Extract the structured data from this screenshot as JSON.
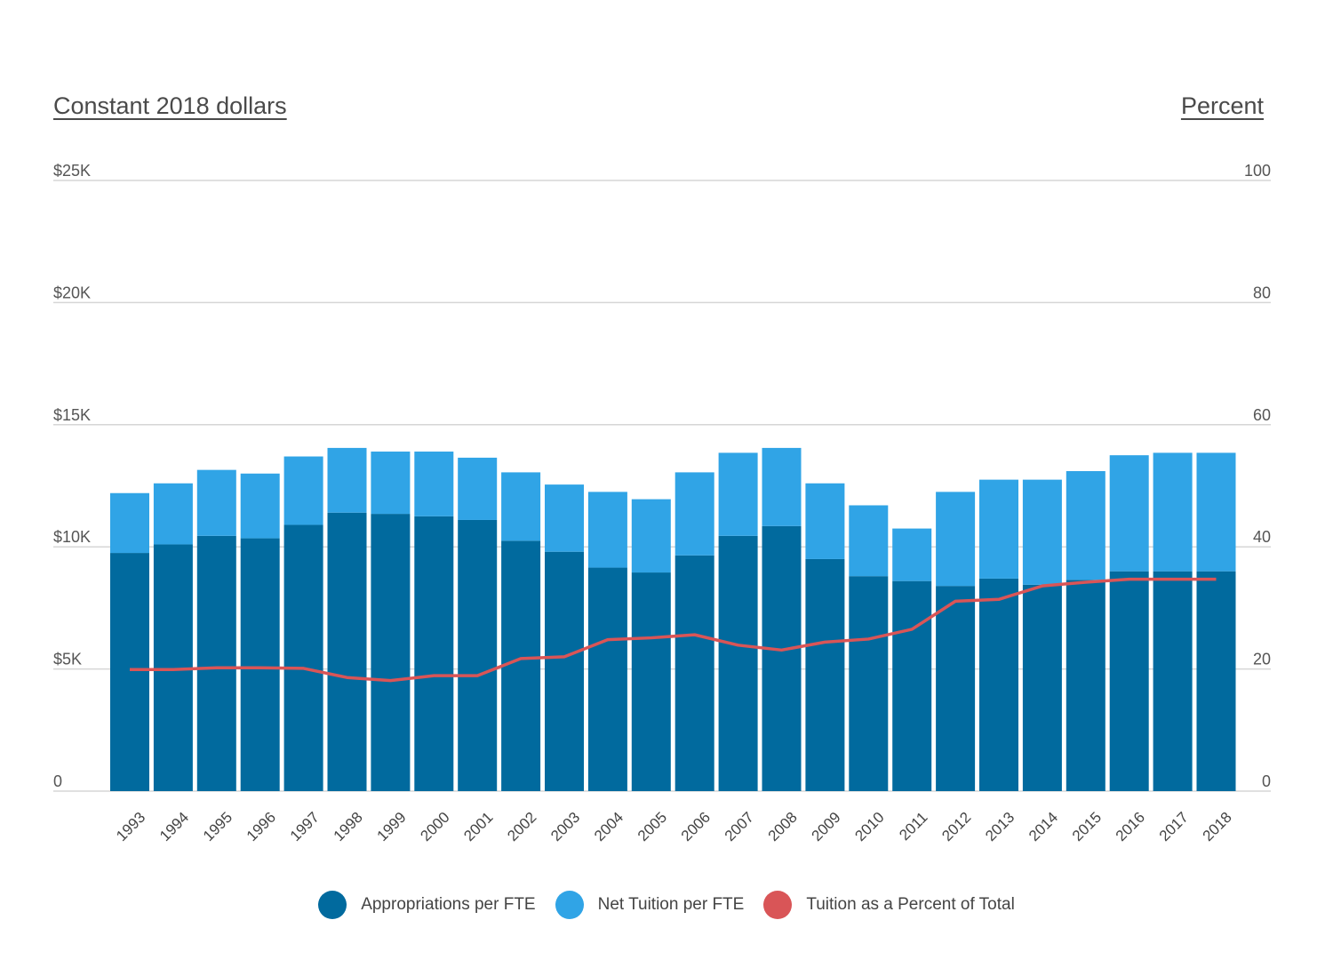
{
  "header": {
    "left_axis_title": "Constant 2018 dollars",
    "right_axis_title": "Percent"
  },
  "colors": {
    "appropriations": "#016a9e",
    "net_tuition": "#30a4e6",
    "percent_line": "#d95557",
    "grid": "#d6d6d6"
  },
  "legend": {
    "items": [
      {
        "label": "Appropriations per FTE",
        "color": "#016a9e"
      },
      {
        "label": "Net Tuition per FTE",
        "color": "#30a4e6"
      },
      {
        "label": "Tuition as a Percent of Total",
        "color": "#d95557"
      }
    ]
  },
  "chart_data": {
    "type": "bar",
    "stacked": true,
    "categories": [
      "1993",
      "1994",
      "1995",
      "1996",
      "1997",
      "1998",
      "1999",
      "2000",
      "2001",
      "2002",
      "2003",
      "2004",
      "2005",
      "2006",
      "2007",
      "2008",
      "2009",
      "2010",
      "2011",
      "2012",
      "2013",
      "2014",
      "2015",
      "2016",
      "2017",
      "2018"
    ],
    "series": [
      {
        "name": "Appropriations per FTE",
        "axis": "left",
        "values": [
          9750,
          10100,
          10450,
          10350,
          10900,
          11400,
          11350,
          11250,
          11100,
          10250,
          9800,
          9150,
          8950,
          9650,
          10450,
          10850,
          9500,
          8800,
          8600,
          8400,
          8700,
          8450,
          8650,
          9000,
          9000,
          9000
        ]
      },
      {
        "name": "Net Tuition per FTE",
        "axis": "left",
        "values": [
          2450,
          2500,
          2700,
          2650,
          2800,
          2650,
          2550,
          2650,
          2550,
          2800,
          2750,
          3100,
          3000,
          3400,
          3400,
          3200,
          3100,
          2900,
          2150,
          3850,
          4050,
          4300,
          4450,
          4750,
          4850,
          4850
        ]
      },
      {
        "name": "Tuition as a Percent of Total",
        "axis": "right",
        "type": "line",
        "values": [
          19.9,
          19.9,
          20.2,
          20.2,
          20.1,
          18.6,
          18.1,
          18.9,
          18.9,
          21.7,
          22,
          24.8,
          25.1,
          25.6,
          23.9,
          23.1,
          24.4,
          24.9,
          26.5,
          31.1,
          31.4,
          33.6,
          34.2,
          34.7,
          34.7,
          34.7
        ]
      }
    ],
    "y_left": {
      "range": [
        0,
        25000
      ],
      "ticks": [
        0,
        5000,
        10000,
        15000,
        20000,
        25000
      ],
      "tick_labels": [
        "0",
        "$5K",
        "$10K",
        "$15K",
        "$20K",
        "$25K"
      ]
    },
    "y_right": {
      "range": [
        0,
        100
      ],
      "ticks": [
        0,
        20,
        40,
        60,
        80,
        100
      ],
      "tick_labels": [
        "0",
        "20",
        "40",
        "60",
        "80",
        "100"
      ]
    },
    "ylabel_left": "Constant 2018 dollars",
    "ylabel_right": "Percent",
    "grid": true,
    "legend_position": "bottom"
  }
}
